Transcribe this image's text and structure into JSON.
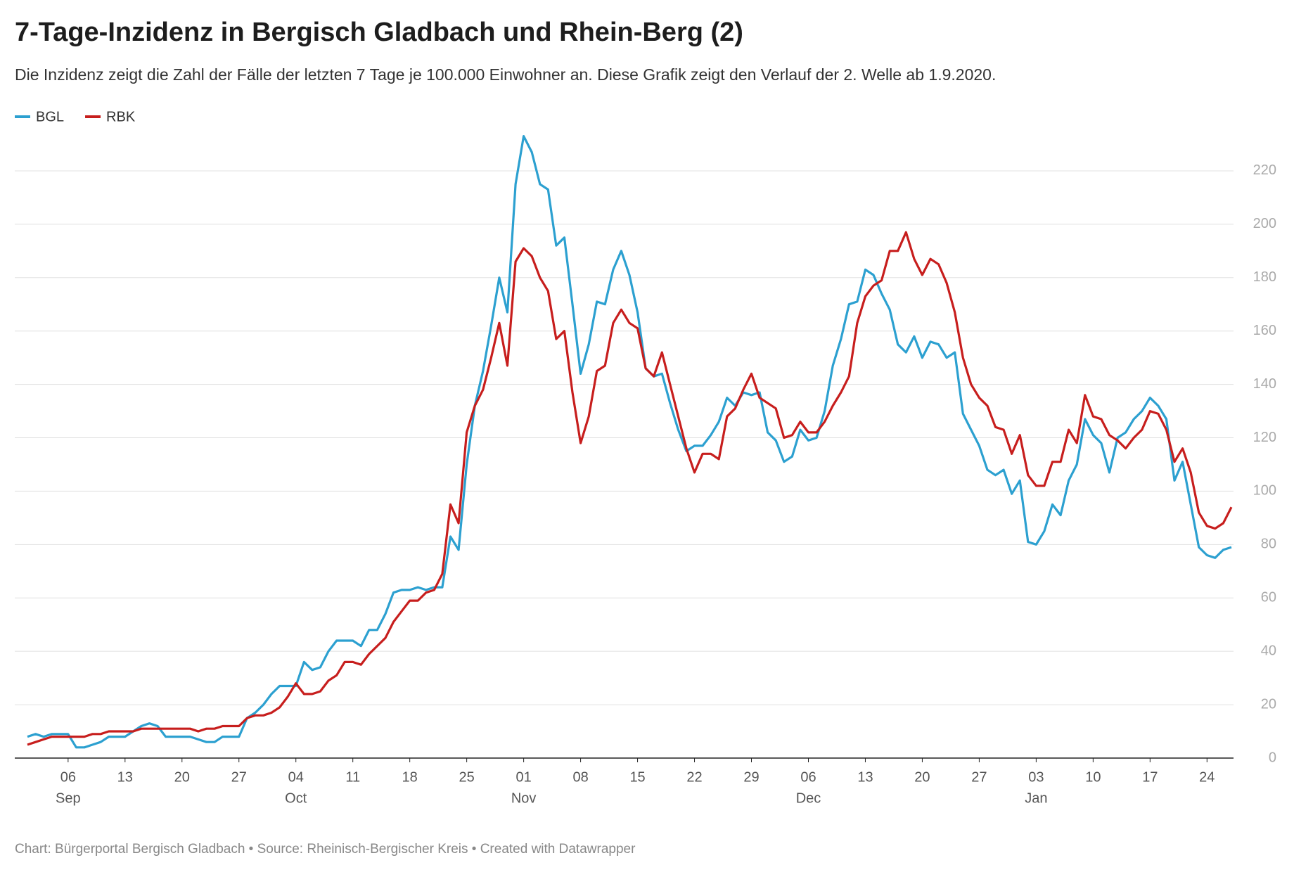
{
  "chart_data": {
    "type": "line",
    "title": "7-Tage-Inzidenz in Bergisch Gladbach und Rhein-Berg (2)",
    "subtitle": "Die Inzidenz zeigt die Zahl der Fälle der letzten 7 Tage je 100.000 Einwohner an. Diese Grafik zeigt den Verlauf der 2. Welle ab 1.9.2020.",
    "footer": "Chart: Bürgerportal Bergisch Gladbach • Source: Rheinisch-Bergischer Kreis • Created with Datawrapper",
    "x": [
      "09-01",
      "09-02",
      "09-03",
      "09-04",
      "09-05",
      "09-06",
      "09-07",
      "09-08",
      "09-09",
      "09-10",
      "09-11",
      "09-12",
      "09-13",
      "09-14",
      "09-15",
      "09-16",
      "09-17",
      "09-18",
      "09-19",
      "09-20",
      "09-21",
      "09-22",
      "09-23",
      "09-24",
      "09-25",
      "09-26",
      "09-27",
      "09-28",
      "09-29",
      "09-30",
      "10-01",
      "10-02",
      "10-03",
      "10-04",
      "10-05",
      "10-06",
      "10-07",
      "10-08",
      "10-09",
      "10-10",
      "10-11",
      "10-12",
      "10-13",
      "10-14",
      "10-15",
      "10-16",
      "10-17",
      "10-18",
      "10-19",
      "10-20",
      "10-21",
      "10-22",
      "10-23",
      "10-24",
      "10-25",
      "10-26",
      "10-27",
      "10-28",
      "10-29",
      "10-30",
      "10-31",
      "11-01",
      "11-02",
      "11-03",
      "11-04",
      "11-05",
      "11-06",
      "11-07",
      "11-08",
      "11-09",
      "11-10",
      "11-11",
      "11-12",
      "11-13",
      "11-14",
      "11-15",
      "11-16",
      "11-17",
      "11-18",
      "11-19",
      "11-20",
      "11-21",
      "11-22",
      "11-23",
      "11-24",
      "11-25",
      "11-26",
      "11-27",
      "11-28",
      "11-29",
      "11-30",
      "12-01",
      "12-02",
      "12-03",
      "12-04",
      "12-05",
      "12-06",
      "12-07",
      "12-08",
      "12-09",
      "12-10",
      "12-11",
      "12-12",
      "12-13",
      "12-14",
      "12-15",
      "12-16",
      "12-17",
      "12-18",
      "12-19",
      "12-20",
      "12-21",
      "12-22",
      "12-23",
      "12-24",
      "12-25",
      "12-26",
      "12-27",
      "12-28",
      "12-29",
      "12-30",
      "12-31",
      "01-01",
      "01-02",
      "01-03",
      "01-04",
      "01-05",
      "01-06",
      "01-07",
      "01-08",
      "01-09",
      "01-10",
      "01-11",
      "01-12",
      "01-13",
      "01-14",
      "01-15",
      "01-16",
      "01-17",
      "01-18",
      "01-19",
      "01-20",
      "01-21",
      "01-22",
      "01-23",
      "01-24",
      "01-25",
      "01-26",
      "01-27"
    ],
    "series": [
      {
        "name": "BGL",
        "color": "#2ca0d0",
        "values": [
          8,
          9,
          8,
          9,
          9,
          9,
          4,
          4,
          5,
          6,
          8,
          8,
          8,
          10,
          12,
          13,
          12,
          8,
          8,
          8,
          8,
          7,
          6,
          6,
          8,
          8,
          8,
          15,
          17,
          20,
          24,
          27,
          27,
          27,
          36,
          33,
          34,
          40,
          44,
          44,
          44,
          42,
          48,
          48,
          54,
          62,
          63,
          63,
          64,
          63,
          64,
          64,
          83,
          78,
          110,
          132,
          145,
          162,
          180,
          167,
          215,
          233,
          227,
          215,
          213,
          192,
          195,
          170,
          144,
          155,
          171,
          170,
          183,
          190,
          181,
          167,
          146,
          143,
          144,
          133,
          123,
          115,
          117,
          117,
          121,
          126,
          135,
          132,
          137,
          136,
          137,
          122,
          119,
          111,
          113,
          123,
          119,
          120,
          130,
          147,
          157,
          170,
          171,
          183,
          181,
          174,
          168,
          155,
          152,
          158,
          150,
          156,
          155,
          150,
          152,
          129,
          123,
          117,
          108,
          106,
          108,
          99,
          104,
          81,
          80,
          85,
          95,
          91,
          104,
          110,
          127,
          121,
          118,
          107,
          120,
          122,
          127,
          130,
          135,
          132,
          127,
          104,
          111,
          95,
          79,
          76,
          75,
          78,
          79
        ]
      },
      {
        "name": "RBK",
        "color": "#c71e1d",
        "values": [
          5,
          6,
          7,
          8,
          8,
          8,
          8,
          8,
          9,
          9,
          10,
          10,
          10,
          10,
          11,
          11,
          11,
          11,
          11,
          11,
          11,
          10,
          11,
          11,
          12,
          12,
          12,
          15,
          16,
          16,
          17,
          19,
          23,
          28,
          24,
          24,
          25,
          29,
          31,
          36,
          36,
          35,
          39,
          42,
          45,
          51,
          55,
          59,
          59,
          62,
          63,
          69,
          95,
          88,
          122,
          132,
          138,
          150,
          163,
          147,
          186,
          191,
          188,
          180,
          175,
          157,
          160,
          137,
          118,
          128,
          145,
          147,
          163,
          168,
          163,
          161,
          146,
          143,
          152,
          140,
          128,
          116,
          107,
          114,
          114,
          112,
          128,
          131,
          138,
          144,
          135,
          133,
          131,
          120,
          121,
          126,
          122,
          122,
          126,
          132,
          137,
          143,
          163,
          173,
          177,
          179,
          190,
          190,
          197,
          187,
          181,
          187,
          185,
          178,
          167,
          150,
          140,
          135,
          132,
          124,
          123,
          114,
          121,
          106,
          102,
          102,
          111,
          111,
          123,
          118,
          136,
          128,
          127,
          121,
          119,
          116,
          120,
          123,
          130,
          129,
          123,
          111,
          116,
          107,
          92,
          87,
          86,
          88,
          94
        ]
      }
    ],
    "ylim": [
      0,
      230
    ],
    "yticks": [
      0,
      20,
      40,
      60,
      80,
      100,
      120,
      140,
      160,
      180,
      200,
      220
    ],
    "xticks": [
      {
        "value": "09-06",
        "label": "06"
      },
      {
        "value": "09-13",
        "label": "13"
      },
      {
        "value": "09-20",
        "label": "20"
      },
      {
        "value": "09-27",
        "label": "27"
      },
      {
        "value": "10-04",
        "label": "04"
      },
      {
        "value": "10-11",
        "label": "11"
      },
      {
        "value": "10-18",
        "label": "18"
      },
      {
        "value": "10-25",
        "label": "25"
      },
      {
        "value": "11-01",
        "label": "01"
      },
      {
        "value": "11-08",
        "label": "08"
      },
      {
        "value": "11-15",
        "label": "15"
      },
      {
        "value": "11-22",
        "label": "22"
      },
      {
        "value": "11-29",
        "label": "29"
      },
      {
        "value": "12-06",
        "label": "06"
      },
      {
        "value": "12-13",
        "label": "13"
      },
      {
        "value": "12-20",
        "label": "20"
      },
      {
        "value": "12-27",
        "label": "27"
      },
      {
        "value": "01-03",
        "label": "03"
      },
      {
        "value": "01-10",
        "label": "10"
      },
      {
        "value": "01-17",
        "label": "17"
      },
      {
        "value": "01-24",
        "label": "24"
      }
    ],
    "xmonths": [
      {
        "value": "09-06",
        "label": "Sep"
      },
      {
        "value": "10-04",
        "label": "Oct"
      },
      {
        "value": "11-01",
        "label": "Nov"
      },
      {
        "value": "12-06",
        "label": "Dec"
      },
      {
        "value": "01-03",
        "label": "Jan"
      }
    ],
    "grid": true,
    "legend": "top-left"
  }
}
